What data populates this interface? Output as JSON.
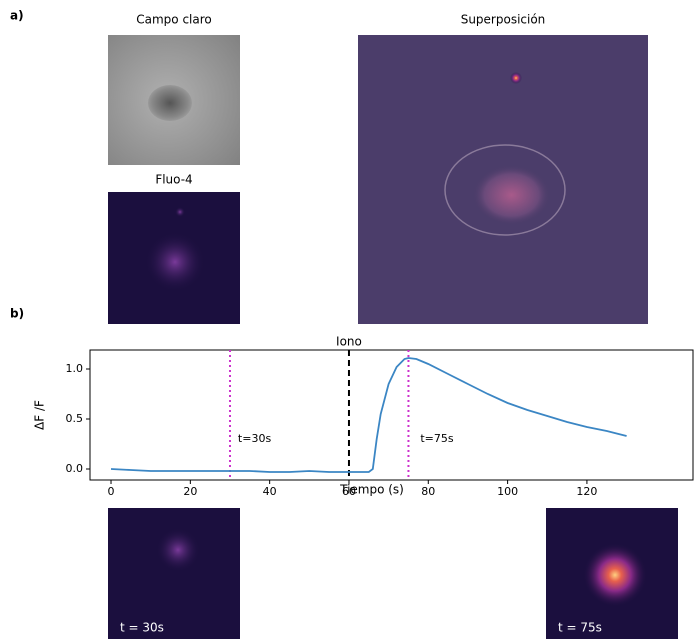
{
  "figure": {
    "panel_a": "a)",
    "panel_b": "b)",
    "image_titles": [
      "Campo claro",
      "Fluo-4",
      "Superposición"
    ],
    "inset_labels": [
      "t = 30s",
      "t = 75s"
    ]
  },
  "chart_data": {
    "type": "line",
    "xlabel": "Tiempo (s)",
    "ylabel": "ΔF /F",
    "x": [
      0,
      5,
      10,
      15,
      20,
      25,
      30,
      35,
      40,
      45,
      50,
      55,
      60,
      63,
      65,
      66,
      67,
      68,
      70,
      72,
      74,
      75,
      77,
      80,
      85,
      90,
      95,
      100,
      105,
      110,
      115,
      120,
      125,
      128,
      130
    ],
    "series": [
      {
        "name": "ΔF /F",
        "color": "#3b86c4",
        "values": [
          0.0,
          -0.01,
          -0.02,
          -0.02,
          -0.02,
          -0.02,
          -0.02,
          -0.02,
          -0.03,
          -0.03,
          -0.02,
          -0.03,
          -0.03,
          -0.03,
          -0.03,
          0.0,
          0.3,
          0.55,
          0.85,
          1.02,
          1.1,
          1.11,
          1.1,
          1.05,
          0.95,
          0.85,
          0.75,
          0.66,
          0.59,
          0.53,
          0.47,
          0.42,
          0.38,
          0.35,
          0.33
        ]
      }
    ],
    "xlim": [
      -5.3,
      147
    ],
    "ylim": [
      -0.11,
      1.19
    ],
    "xticks": [
      0,
      20,
      40,
      60,
      80,
      100,
      120
    ],
    "yticks": [
      {
        "value": 0,
        "label": "0.0"
      },
      0.5,
      {
        "value": 1,
        "label": "1.0"
      }
    ],
    "vlines": [
      {
        "x": 30,
        "color": "#cc33cc",
        "style": "dotted"
      },
      {
        "x": 60,
        "color": "#000000",
        "style": "dashed",
        "label": "Iono"
      },
      {
        "x": 75,
        "color": "#cc33cc",
        "style": "dotted"
      }
    ],
    "annotations": [
      {
        "text": "t=30s",
        "x": 32,
        "y": 0.3
      },
      {
        "text": "t=75s",
        "x": 78,
        "y": 0.3
      }
    ]
  }
}
